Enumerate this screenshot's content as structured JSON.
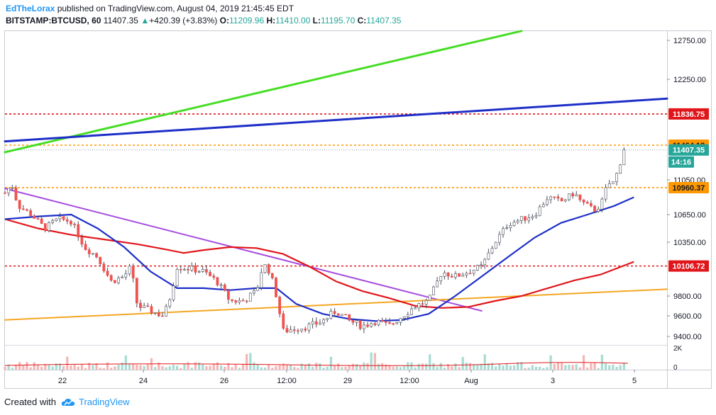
{
  "header": {
    "author": "EdTheLorax",
    "published": "published on TradingView.com, August 04, 2019 21:45:45 EDT",
    "symbol": "BITSTAMP:BTCUSD, 60",
    "last": "11407.35",
    "change": "+420.39 (+3.83%)",
    "open_label": "O:",
    "open": "11209.96",
    "high_label": "H:",
    "high": "11410.00",
    "low_label": "L:",
    "low": "11195.70",
    "close_label": "C:",
    "close": "11407.35"
  },
  "footer": {
    "created_with": "Created with",
    "brand": "TradingView"
  },
  "colors": {
    "up": "#26a69a",
    "down": "#ef5350",
    "candle_body_up": "#ffffff",
    "green_line": "#44dd22",
    "blue_line": "#1e2fc8",
    "purple_line": "#a64ce0",
    "orange_line": "#f5a623",
    "red_level": "#e0161b",
    "orange_level": "#ff9800",
    "ma_blue": "#1e2fc8",
    "ma_red": "#e0161b"
  },
  "chart_data": {
    "type": "candlestick",
    "y_axis": {
      "range": [
        9300,
        12900
      ],
      "ticks": [
        9400,
        9600,
        9800,
        10350,
        10650,
        11050,
        12250,
        12750
      ],
      "tick_labels": [
        "9400.00",
        "9600.00",
        "9800.00",
        "10350.00",
        "10650.00",
        "11050.00",
        "12250.00",
        "12750.00"
      ]
    },
    "x_axis": {
      "tick_labels": [
        "22",
        "24",
        "26",
        "12:00",
        "29",
        "12:00",
        "Aug",
        "3",
        "5"
      ]
    },
    "price_labels": [
      {
        "value": 11836.75,
        "label": "11836.75",
        "style": "red"
      },
      {
        "value": 11464.18,
        "label": "11464.18",
        "style": "orange"
      },
      {
        "value": 11407.35,
        "label": "11407.35",
        "style": "last"
      },
      {
        "value": 10960.37,
        "label": "10960.37",
        "style": "orange"
      },
      {
        "value": 10106.72,
        "label": "10106.72",
        "style": "red"
      }
    ],
    "countdown": "14:16",
    "horizontal_levels": [
      {
        "value": 11836.75,
        "color": "red"
      },
      {
        "value": 11464.18,
        "color": "orange"
      },
      {
        "value": 10960.37,
        "color": "orange"
      },
      {
        "value": 10106.72,
        "color": "red"
      }
    ],
    "volume_axis": {
      "tick_labels": [
        "2K",
        "0"
      ]
    },
    "close_path": [
      [
        0,
        10900
      ],
      [
        0.01,
        11000
      ],
      [
        0.02,
        10750
      ],
      [
        0.04,
        10650
      ],
      [
        0.06,
        10500
      ],
      [
        0.08,
        10600
      ],
      [
        0.1,
        10580
      ],
      [
        0.12,
        10300
      ],
      [
        0.14,
        10200
      ],
      [
        0.16,
        9950
      ],
      [
        0.18,
        10000
      ],
      [
        0.19,
        10100
      ],
      [
        0.2,
        9700
      ],
      [
        0.22,
        9650
      ],
      [
        0.24,
        9600
      ],
      [
        0.25,
        9800
      ],
      [
        0.26,
        10100
      ],
      [
        0.28,
        10080
      ],
      [
        0.3,
        10050
      ],
      [
        0.32,
        9950
      ],
      [
        0.34,
        9750
      ],
      [
        0.36,
        9750
      ],
      [
        0.38,
        9850
      ],
      [
        0.39,
        10130
      ],
      [
        0.4,
        10050
      ],
      [
        0.41,
        9800
      ],
      [
        0.42,
        9450
      ],
      [
        0.44,
        9480
      ],
      [
        0.46,
        9500
      ],
      [
        0.48,
        9550
      ],
      [
        0.5,
        9650
      ],
      [
        0.52,
        9550
      ],
      [
        0.54,
        9500
      ],
      [
        0.56,
        9550
      ],
      [
        0.58,
        9500
      ],
      [
        0.6,
        9600
      ],
      [
        0.62,
        9700
      ],
      [
        0.64,
        9750
      ],
      [
        0.66,
        10050
      ],
      [
        0.68,
        10000
      ],
      [
        0.7,
        10050
      ],
      [
        0.72,
        10100
      ],
      [
        0.74,
        10350
      ],
      [
        0.76,
        10550
      ],
      [
        0.78,
        10600
      ],
      [
        0.8,
        10650
      ],
      [
        0.82,
        10850
      ],
      [
        0.84,
        10800
      ],
      [
        0.86,
        10900
      ],
      [
        0.87,
        10800
      ],
      [
        0.88,
        10750
      ],
      [
        0.89,
        10700
      ],
      [
        0.9,
        10760
      ],
      [
        0.91,
        11000
      ],
      [
        0.92,
        11020
      ],
      [
        0.935,
        11400
      ]
    ],
    "ma_blue_path": [
      [
        0,
        10600
      ],
      [
        0.05,
        10630
      ],
      [
        0.1,
        10650
      ],
      [
        0.14,
        10500
      ],
      [
        0.18,
        10300
      ],
      [
        0.22,
        10050
      ],
      [
        0.26,
        9880
      ],
      [
        0.3,
        9880
      ],
      [
        0.34,
        9860
      ],
      [
        0.38,
        9880
      ],
      [
        0.41,
        9880
      ],
      [
        0.44,
        9720
      ],
      [
        0.48,
        9620
      ],
      [
        0.52,
        9570
      ],
      [
        0.56,
        9550
      ],
      [
        0.6,
        9560
      ],
      [
        0.64,
        9620
      ],
      [
        0.68,
        9800
      ],
      [
        0.72,
        10000
      ],
      [
        0.76,
        10200
      ],
      [
        0.8,
        10400
      ],
      [
        0.84,
        10560
      ],
      [
        0.88,
        10650
      ],
      [
        0.92,
        10750
      ],
      [
        0.95,
        10850
      ]
    ],
    "ma_red_path": [
      [
        0,
        10600
      ],
      [
        0.05,
        10500
      ],
      [
        0.1,
        10430
      ],
      [
        0.15,
        10380
      ],
      [
        0.2,
        10330
      ],
      [
        0.24,
        10280
      ],
      [
        0.27,
        10240
      ],
      [
        0.3,
        10270
      ],
      [
        0.34,
        10300
      ],
      [
        0.38,
        10290
      ],
      [
        0.42,
        10230
      ],
      [
        0.46,
        10100
      ],
      [
        0.5,
        9950
      ],
      [
        0.54,
        9850
      ],
      [
        0.58,
        9780
      ],
      [
        0.62,
        9700
      ],
      [
        0.66,
        9680
      ],
      [
        0.7,
        9690
      ],
      [
        0.74,
        9750
      ],
      [
        0.78,
        9800
      ],
      [
        0.82,
        9880
      ],
      [
        0.86,
        9960
      ],
      [
        0.9,
        10020
      ],
      [
        0.95,
        10150
      ]
    ],
    "trendlines": [
      {
        "name": "green",
        "from": [
          0.0,
          11380
        ],
        "to": [
          0.78,
          12870
        ]
      },
      {
        "name": "blue",
        "from": [
          0.0,
          11510
        ],
        "to": [
          1.0,
          12020
        ]
      },
      {
        "name": "purple",
        "from": [
          0.0,
          10950
        ],
        "to": [
          0.72,
          9650
        ]
      },
      {
        "name": "orange",
        "from": [
          0.0,
          9560
        ],
        "to": [
          1.0,
          9870
        ]
      }
    ]
  }
}
